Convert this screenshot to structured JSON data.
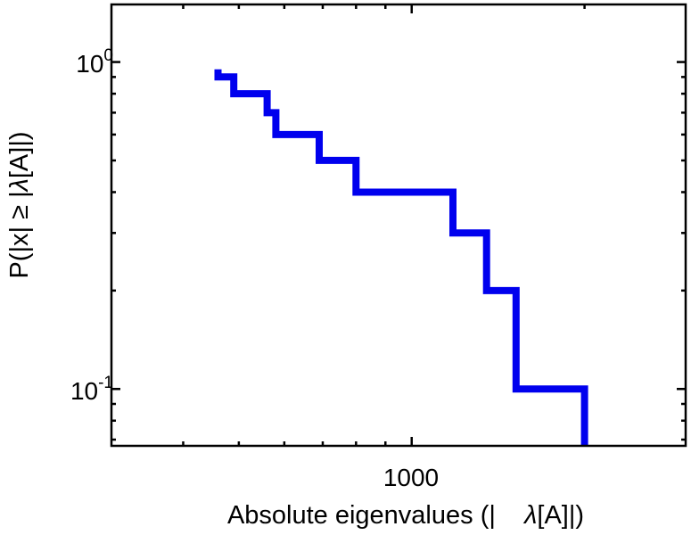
{
  "chart_data": {
    "type": "line",
    "subtype": "empirical-survival-step-function",
    "title": "",
    "xlabel": "Absolute eigenvalues (| λ[A]|)",
    "ylabel": "P(|x| ≥ |λ[A]|)",
    "x_scale": "log",
    "y_scale": "log",
    "xlim": [
      300,
      3000
    ],
    "ylim": [
      0.067,
      1.5
    ],
    "legend": "none",
    "grid": false,
    "eigenvalues": [
      460,
      490,
      560,
      580,
      690,
      800,
      1180,
      1350,
      1520,
      2000
    ],
    "survival_levels": [
      0.9,
      0.8,
      0.7,
      0.6,
      0.5,
      0.4,
      0.3,
      0.2,
      0.1
    ],
    "trace_start_p": 0.95,
    "line_color": "#0000ee",
    "line_width": 8,
    "axis_color": "#000000",
    "x_major_ticks": [
      1000
    ],
    "x_minor_ticks": [
      400,
      500,
      600,
      700,
      800,
      900,
      2000
    ],
    "y_major_ticks": [
      1,
      0.1
    ],
    "y_minor_ticks": [
      0.9,
      0.8,
      0.7,
      0.6,
      0.5,
      0.4,
      0.3,
      0.2,
      0.09,
      0.08,
      0.07
    ],
    "x_tick_labels": [
      {
        "value": 1000,
        "label": "1000"
      }
    ],
    "y_tick_labels": [
      {
        "base": "10",
        "exp": "0"
      },
      {
        "base": "10",
        "exp": "-1"
      }
    ]
  },
  "labels": {
    "x_tick_1000": "1000",
    "y_tick_1e0_base": "10",
    "y_tick_1e0_exp": "0",
    "y_tick_1em1_base": "10",
    "y_tick_1em1_exp": "-1",
    "x_title_pre": "Absolute eigenvalues (|    ",
    "x_title_lambda": "λ",
    "x_title_post": "[A]|)",
    "y_title_pre": "P(|x| ≥ |",
    "y_title_lambda": "λ",
    "y_title_post": "[A]|)"
  }
}
